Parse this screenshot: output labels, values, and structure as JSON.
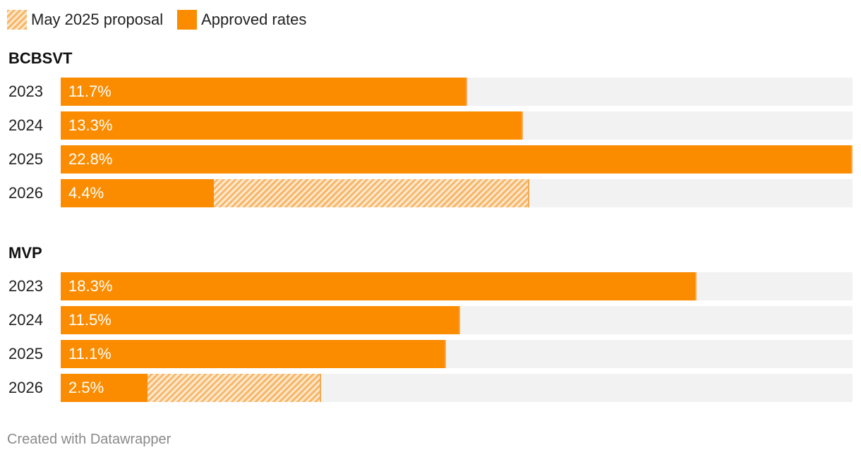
{
  "legend": {
    "proposal_label": "May 2025 proposal",
    "approved_label": "Approved rates"
  },
  "colors": {
    "approved": "#fb8c00",
    "proposal_hatch": "#f7b76a",
    "track": "#f2f2f2"
  },
  "footer": "Created with Datawrapper",
  "chart_data": {
    "type": "bar",
    "orientation": "horizontal",
    "xlim": [
      0,
      22.8
    ],
    "legend_position": "top-left",
    "groups": [
      {
        "title": "BCBSVT",
        "rows": [
          {
            "year": "2023",
            "approved": 11.7,
            "approved_label": "11.7%",
            "proposal": 11.7
          },
          {
            "year": "2024",
            "approved": 13.3,
            "approved_label": "13.3%",
            "proposal": 13.3
          },
          {
            "year": "2025",
            "approved": 22.8,
            "approved_label": "22.8%",
            "proposal": 22.8
          },
          {
            "year": "2026",
            "approved": 4.4,
            "approved_label": "4.4%",
            "proposal": 13.5
          }
        ]
      },
      {
        "title": "MVP",
        "rows": [
          {
            "year": "2023",
            "approved": 18.3,
            "approved_label": "18.3%",
            "proposal": 18.3
          },
          {
            "year": "2024",
            "approved": 11.5,
            "approved_label": "11.5%",
            "proposal": 11.5
          },
          {
            "year": "2025",
            "approved": 11.1,
            "approved_label": "11.1%",
            "proposal": 11.1
          },
          {
            "year": "2026",
            "approved": 2.5,
            "approved_label": "2.5%",
            "proposal": 7.5
          }
        ]
      }
    ]
  }
}
